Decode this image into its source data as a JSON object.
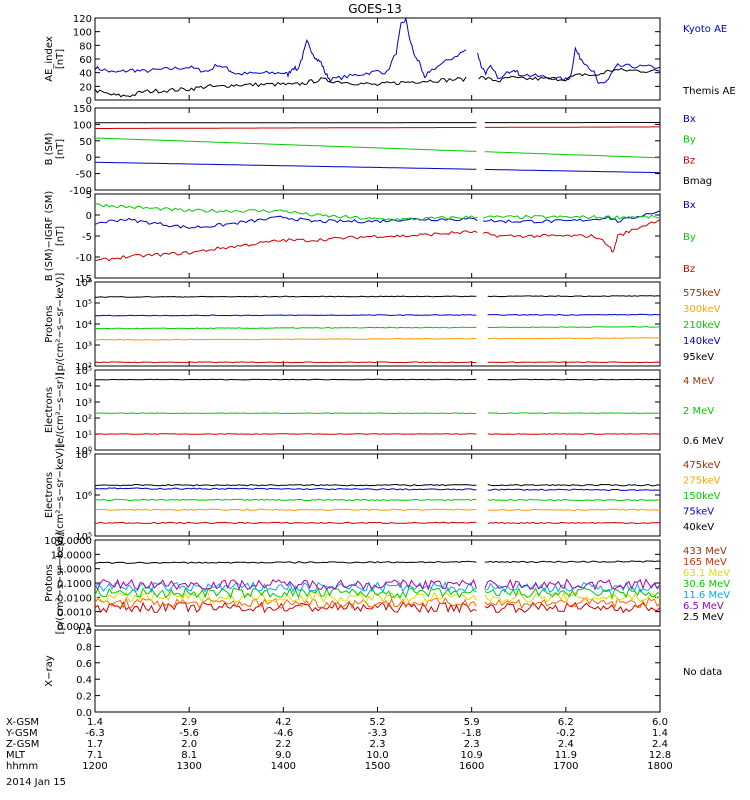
{
  "title": "GOES-13",
  "date_label": "2014 Jan 15",
  "colors": {
    "black": "#000000",
    "blue": "#0000cc",
    "red": "#cc0000",
    "green": "#00cc00",
    "orange": "#ff9900",
    "cyan": "#00aaff",
    "purple": "#aa00aa",
    "bluelabel": "#0000cc",
    "redlabel": "#cc0000",
    "greenlabel": "#00cc00",
    "orangelabel": "#ffa500",
    "yellowlabel": "#dddd00",
    "purplelabel": "#9900cc",
    "brownlabel": "#993300"
  },
  "orbit_rows": [
    {
      "label": "X-GSM",
      "values": [
        "1.4",
        "2.9",
        "4.2",
        "5.2",
        "5.9",
        "6.2",
        "6.0"
      ]
    },
    {
      "label": "Y-GSM",
      "values": [
        "-6.3",
        "-5.6",
        "-4.6",
        "-3.3",
        "-1.8",
        "-0.2",
        "1.4"
      ]
    },
    {
      "label": "Z-GSM",
      "values": [
        "1.7",
        "2.0",
        "2.2",
        "2.3",
        "2.3",
        "2.4",
        "2.4"
      ]
    },
    {
      "label": "MLT",
      "values": [
        "7.1",
        "8.1",
        "9.0",
        "10.0",
        "10.9",
        "11.9",
        "12.8"
      ]
    },
    {
      "label": "hhmm",
      "values": [
        "1200",
        "1300",
        "1400",
        "1500",
        "1600",
        "1700",
        "1800"
      ]
    }
  ],
  "chart_data": [
    {
      "type": "line",
      "id": "ae",
      "ylabel": "AE_index\n[nT]",
      "yticks": [
        "120",
        "100",
        "80",
        "60",
        "40",
        "20",
        "0"
      ],
      "ylim": [
        0,
        120
      ],
      "scale": "linear",
      "series": [
        {
          "name": "Kyoto AE",
          "color": "#0000cc",
          "x": [
            1200,
            1210,
            1220,
            1230,
            1240,
            1250,
            1300,
            1310,
            1320,
            1330,
            1340,
            1345,
            1350,
            1400,
            1405,
            1410,
            1415,
            1420,
            1425,
            1430,
            1435,
            1440,
            1445,
            1450,
            1500,
            1510,
            1520,
            1525,
            1530,
            1535,
            1540,
            1545,
            1550,
            1555,
            1600,
            1605,
            1610,
            1615,
            1620,
            1630,
            1640,
            1645,
            1650,
            1700,
            1705,
            1710,
            1715,
            1720,
            1730,
            1735,
            1740,
            1745,
            1750,
            1755,
            1800
          ],
          "y": [
            47,
            44,
            40,
            42,
            44,
            42,
            48,
            44,
            42,
            52,
            46,
            42,
            38,
            40,
            37,
            48,
            44,
            62,
            85,
            72,
            60,
            55,
            38,
            30,
            42,
            40,
            70,
            110,
            118,
            85,
            62,
            55,
            30,
            42,
            78,
            75,
            50,
            40,
            48,
            30,
            42,
            46,
            38,
            30,
            34,
            75,
            62,
            55,
            40,
            22,
            25,
            30,
            42,
            50,
            48
          ]
        },
        {
          "name": "Themis AE",
          "color": "#000000",
          "x": [
            1200,
            1210,
            1220,
            1230,
            1240,
            1250,
            1300,
            1310,
            1320,
            1330,
            1340,
            1350,
            1400,
            1410,
            1420,
            1430,
            1440,
            1450,
            1500,
            1510,
            1520,
            1530,
            1540,
            1550,
            1600,
            1610,
            1620,
            1630,
            1640,
            1650,
            1700,
            1710,
            1720,
            1730,
            1740,
            1750,
            1800
          ],
          "y": [
            14,
            10,
            7,
            6,
            7,
            12,
            16,
            18,
            20,
            19,
            21,
            22,
            23,
            22,
            24,
            27,
            30,
            28,
            22,
            24,
            25,
            26,
            27,
            28,
            31,
            33,
            30,
            28,
            33,
            31,
            31,
            35,
            38,
            35,
            40,
            44,
            42
          ]
        }
      ],
      "legend": [
        {
          "text": "Kyoto AE",
          "color": "#0000cc"
        },
        {
          "text": "Themis AE",
          "color": "#000000"
        }
      ]
    },
    {
      "type": "line",
      "id": "bsm",
      "ylabel": "B (SM)\n[nT]",
      "yticks": [
        "150",
        "100",
        "50",
        "0",
        "-50",
        "-100"
      ],
      "ylim": [
        -110,
        150
      ],
      "scale": "linear",
      "series": [
        {
          "name": "Bx",
          "color": "#0000cc",
          "x": [
            1200,
            1800
          ],
          "y": [
            -22,
            -55
          ]
        },
        {
          "name": "By",
          "color": "#00cc00",
          "x": [
            1200,
            1800
          ],
          "y": [
            55,
            -8
          ]
        },
        {
          "name": "Bz",
          "color": "#cc0000",
          "x": [
            1200,
            1800
          ],
          "y": [
            85,
            90
          ]
        },
        {
          "name": "Bmag",
          "color": "#000000",
          "x": [
            1200,
            1800
          ],
          "y": [
            103,
            104
          ]
        }
      ],
      "legend": [
        {
          "text": "Bx",
          "color": "#0000cc"
        },
        {
          "text": "By",
          "color": "#00cc00"
        },
        {
          "text": "Bz",
          "color": "#cc0000"
        },
        {
          "text": "Bmag",
          "color": "#000000"
        }
      ]
    },
    {
      "type": "line",
      "id": "bigrf",
      "ylabel": "B (SM)−IGRF (SM)\n[nT]",
      "yticks": [
        "5",
        "0",
        "-5",
        "-10",
        "-15"
      ],
      "ylim": [
        -15,
        5
      ],
      "scale": "linear",
      "series": [
        {
          "name": "Bx",
          "color": "#0000cc",
          "x": [
            1200,
            1230,
            1300,
            1330,
            1400,
            1430,
            1500,
            1530,
            1600,
            1630,
            1700,
            1730,
            1745,
            1755,
            1800
          ],
          "y": [
            -2,
            -1,
            -3,
            -2.5,
            -0.5,
            -1.5,
            -1.5,
            -1,
            -1,
            -1.5,
            -1.5,
            -1,
            -0.5,
            -1.5,
            1
          ]
        },
        {
          "name": "By",
          "color": "#00cc00",
          "x": [
            1200,
            1230,
            1300,
            1330,
            1400,
            1430,
            1500,
            1530,
            1600,
            1630,
            1700,
            1730,
            1800
          ],
          "y": [
            2.5,
            2,
            1,
            1,
            1,
            0,
            -1,
            -1,
            -0.5,
            -0.5,
            -0.5,
            -0.5,
            -0.5
          ]
        },
        {
          "name": "Bz",
          "color": "#cc0000",
          "x": [
            1200,
            1230,
            1300,
            1330,
            1400,
            1430,
            1500,
            1530,
            1600,
            1630,
            1700,
            1730,
            1745,
            1750,
            1755,
            1800
          ],
          "y": [
            -11,
            -10,
            -9,
            -8,
            -6,
            -6,
            -5,
            -5,
            -4,
            -5,
            -5,
            -5,
            -7,
            -9,
            -5,
            -1
          ]
        }
      ],
      "legend": [
        {
          "text": "Bx",
          "color": "#0000cc"
        },
        {
          "text": "By",
          "color": "#00cc00"
        },
        {
          "text": "Bz",
          "color": "#cc0000"
        }
      ]
    },
    {
      "type": "line",
      "id": "protons1",
      "ylabel": "Protons\n[p/(cm²−s−sr−keV)]",
      "yticks": [
        "10⁶",
        "10⁵",
        "10⁴",
        "10³",
        "10²"
      ],
      "ylim": [
        1.5,
        6
      ],
      "scale": "log",
      "series": [
        {
          "name": "575keV",
          "color": "#cc0000",
          "x": [
            1200,
            1800
          ],
          "y": [
            1.7,
            1.7
          ]
        },
        {
          "name": "300keV",
          "color": "#ff9900",
          "x": [
            1200,
            1800
          ],
          "y": [
            2.9,
            3.0
          ]
        },
        {
          "name": "210keV",
          "color": "#00cc00",
          "x": [
            1200,
            1800
          ],
          "y": [
            3.5,
            3.6
          ]
        },
        {
          "name": "140keV",
          "color": "#0000cc",
          "x": [
            1200,
            1800
          ],
          "y": [
            4.2,
            4.25
          ]
        },
        {
          "name": "95keV",
          "color": "#000000",
          "x": [
            1200,
            1800
          ],
          "y": [
            5.2,
            5.25
          ]
        }
      ],
      "legend": [
        {
          "text": "575keV",
          "color": "#993300"
        },
        {
          "text": "300keV",
          "color": "#ffa500"
        },
        {
          "text": "210keV",
          "color": "#00cc00"
        },
        {
          "text": "140keV",
          "color": "#0000cc"
        },
        {
          "text": "95keV",
          "color": "#000000"
        }
      ]
    },
    {
      "type": "line",
      "id": "electrons1",
      "ylabel": "Electrons\n[e/(cm²−s−sr)]",
      "yticks": [
        "10⁵",
        "10⁴",
        "10³",
        "10²",
        "10¹",
        "10⁰"
      ],
      "ylim": [
        0,
        5
      ],
      "scale": "log",
      "series": [
        {
          "name": "4 MeV",
          "color": "#cc0000",
          "x": [
            1200,
            1800
          ],
          "y": [
            1.0,
            1.0
          ]
        },
        {
          "name": "2 MeV",
          "color": "#00cc00",
          "x": [
            1200,
            1800
          ],
          "y": [
            2.3,
            2.3
          ]
        },
        {
          "name": "0.6 MeV",
          "color": "#000000",
          "x": [
            1200,
            1800
          ],
          "y": [
            4.4,
            4.4
          ]
        }
      ],
      "legend": [
        {
          "text": "4 MeV",
          "color": "#993300"
        },
        {
          "text": "2 MeV",
          "color": "#00cc00"
        },
        {
          "text": "0.6 MeV",
          "color": "#000000"
        }
      ]
    },
    {
      "type": "line",
      "id": "electrons2",
      "ylabel": "Electrons\n[e/(cm²−s−sr−keV)]",
      "yticks": [
        "10⁷",
        "10⁶",
        "10⁵"
      ],
      "ylim": [
        4.5,
        7
      ],
      "scale": "log",
      "series": [
        {
          "name": "475keV",
          "color": "#cc0000",
          "x": [
            1200,
            1800
          ],
          "y": [
            4.9,
            4.9
          ]
        },
        {
          "name": "275keV",
          "color": "#ff9900",
          "x": [
            1200,
            1800
          ],
          "y": [
            5.3,
            5.3
          ]
        },
        {
          "name": "150keV",
          "color": "#00cc00",
          "x": [
            1200,
            1800
          ],
          "y": [
            5.6,
            5.6
          ]
        },
        {
          "name": "75keV",
          "color": "#0000cc",
          "x": [
            1200,
            1800
          ],
          "y": [
            5.95,
            5.9
          ]
        },
        {
          "name": "40keV",
          "color": "#000000",
          "x": [
            1200,
            1800
          ],
          "y": [
            6.05,
            6.05
          ]
        }
      ],
      "legend": [
        {
          "text": "475keV",
          "color": "#993300"
        },
        {
          "text": "275keV",
          "color": "#ffa500"
        },
        {
          "text": "150keV",
          "color": "#00cc00"
        },
        {
          "text": "75keV",
          "color": "#0000cc"
        },
        {
          "text": "40keV",
          "color": "#000000"
        }
      ]
    },
    {
      "type": "line",
      "id": "protons2",
      "ylabel": "Protons\n[p/(cm²−s−sr−keV)]",
      "yticks": [
        "100.0000",
        "10.0000",
        "1.0000",
        "0.1000",
        "0.0100",
        "0.0010",
        "0.0001"
      ],
      "ylim": [
        -4,
        2
      ],
      "scale": "log",
      "series": [
        {
          "name": "433 MeV",
          "color": "#cc0000",
          "x": [
            1200,
            1800
          ],
          "y": [
            -2.7,
            -2.7
          ]
        },
        {
          "name": "165 MeV",
          "color": "#ff6600",
          "x": [
            1200,
            1800
          ],
          "y": [
            -2.4,
            -2.4
          ]
        },
        {
          "name": "63.1 MeV",
          "color": "#dddd00",
          "x": [
            1200,
            1800
          ],
          "y": [
            -2.0,
            -2.0
          ]
        },
        {
          "name": "30.6 MeV",
          "color": "#00cc00",
          "x": [
            1200,
            1800
          ],
          "y": [
            -1.7,
            -1.7
          ]
        },
        {
          "name": "11.6 MeV",
          "color": "#00aaff",
          "x": [
            1200,
            1800
          ],
          "y": [
            -1.3,
            -1.3
          ]
        },
        {
          "name": "6.5 MeV",
          "color": "#aa00aa",
          "x": [
            1200,
            1800
          ],
          "y": [
            -1.1,
            -1.1
          ]
        },
        {
          "name": "2.5 MeV",
          "color": "#000000",
          "x": [
            1200,
            1800
          ],
          "y": [
            0.4,
            0.5
          ]
        }
      ],
      "legend": [
        {
          "text": "433 MeV",
          "color": "#993300"
        },
        {
          "text": "165 MeV",
          "color": "#cc3300"
        },
        {
          "text": "63.1 MeV",
          "color": "#dddd00"
        },
        {
          "text": "30.6 MeV",
          "color": "#00cc00"
        },
        {
          "text": "11.6 MeV",
          "color": "#00aaff"
        },
        {
          "text": "6.5 MeV",
          "color": "#9900cc"
        },
        {
          "text": "2.5 MeV",
          "color": "#000000"
        }
      ]
    },
    {
      "type": "line",
      "id": "xray",
      "ylabel": "X−ray",
      "yticks": [
        "1.0",
        "0.8",
        "0.6",
        "0.4",
        "0.2",
        "0.0"
      ],
      "ylim": [
        0,
        1
      ],
      "scale": "linear",
      "series": [],
      "legend": [
        {
          "text": "No data",
          "color": "#000000"
        }
      ]
    }
  ]
}
